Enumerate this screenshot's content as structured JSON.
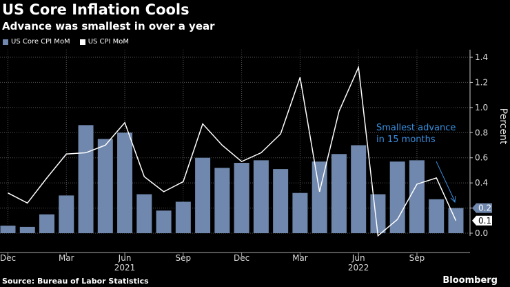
{
  "title": "US Core Inflation Cools",
  "subtitle": "Advance was smallest in over a year",
  "source": "Source: Bureau of Labor Statistics",
  "logo": "Bloomberg",
  "chart_data": {
    "type": "bar+line",
    "categories": [
      "Dec 2020",
      "Jan 2021",
      "Feb 2021",
      "Mar 2021",
      "Apr 2021",
      "May 2021",
      "Jun 2021",
      "Jul 2021",
      "Aug 2021",
      "Sep 2021",
      "Oct 2021",
      "Nov 2021",
      "Dec 2021",
      "Jan 2022",
      "Feb 2022",
      "Mar 2022",
      "Apr 2022",
      "May 2022",
      "Jun 2022",
      "Jul 2022",
      "Aug 2022",
      "Sep 2022",
      "Oct 2022",
      "Nov 2022"
    ],
    "series": [
      {
        "name": "US Core CPI MoM",
        "type": "bar",
        "color": "#7088ad",
        "values": [
          0.06,
          0.05,
          0.15,
          0.3,
          0.86,
          0.75,
          0.8,
          0.31,
          0.18,
          0.25,
          0.6,
          0.52,
          0.56,
          0.58,
          0.51,
          0.32,
          0.57,
          0.63,
          0.7,
          0.31,
          0.57,
          0.58,
          0.27,
          0.2
        ]
      },
      {
        "name": "US CPI MoM",
        "type": "line",
        "color": "#ffffff",
        "values": [
          0.32,
          0.24,
          0.44,
          0.63,
          0.64,
          0.7,
          0.88,
          0.45,
          0.33,
          0.41,
          0.87,
          0.7,
          0.57,
          0.64,
          0.79,
          1.24,
          0.33,
          0.97,
          1.32,
          -0.02,
          0.11,
          0.39,
          0.44,
          0.1
        ]
      }
    ],
    "x_tick_labels": [
      {
        "label": "Dec",
        "index": 0
      },
      {
        "label": "Mar",
        "index": 3
      },
      {
        "label": "Jun",
        "index": 6,
        "year": "2021"
      },
      {
        "label": "Sep",
        "index": 9
      },
      {
        "label": "Dec",
        "index": 12
      },
      {
        "label": "Mar",
        "index": 15
      },
      {
        "label": "Jun",
        "index": 18,
        "year": "2022"
      },
      {
        "label": "Sep",
        "index": 21
      }
    ],
    "y_ticks": [
      "0.0",
      "0.2",
      "0.4",
      "0.6",
      "0.8",
      "1.0",
      "1.2",
      "1.4"
    ],
    "ylabel": "Percent",
    "ylim": [
      0,
      1.4
    ],
    "y_axis_side": "right",
    "grid": true,
    "legend_position": "top-left",
    "last_value_labels": [
      "0.2",
      "0.1"
    ],
    "annotation": {
      "lines": [
        "Smallest advance",
        "in 15 months"
      ],
      "color": "#3a8fe0"
    }
  }
}
